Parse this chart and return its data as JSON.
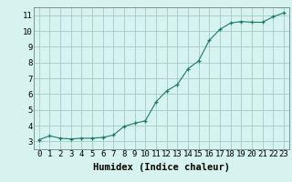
{
  "x": [
    0,
    1,
    2,
    3,
    4,
    5,
    6,
    7,
    8,
    9,
    10,
    11,
    12,
    13,
    14,
    15,
    16,
    17,
    18,
    19,
    20,
    21,
    22,
    23
  ],
  "y": [
    3.1,
    3.35,
    3.2,
    3.15,
    3.2,
    3.2,
    3.25,
    3.4,
    3.95,
    4.15,
    4.3,
    5.5,
    6.2,
    6.6,
    7.6,
    8.1,
    9.4,
    10.1,
    10.5,
    10.6,
    10.55,
    10.55,
    10.9,
    11.15
  ],
  "xlim": [
    -0.5,
    23.5
  ],
  "ylim": [
    2.5,
    11.5
  ],
  "xticks": [
    0,
    1,
    2,
    3,
    4,
    5,
    6,
    7,
    8,
    9,
    10,
    11,
    12,
    13,
    14,
    15,
    16,
    17,
    18,
    19,
    20,
    21,
    22,
    23
  ],
  "yticks": [
    3,
    4,
    5,
    6,
    7,
    8,
    9,
    10,
    11
  ],
  "xlabel": "Humidex (Indice chaleur)",
  "line_color": "#1a7a6a",
  "marker": "+",
  "bg_color": "#d6f3ef",
  "grid_color": "#aacfca",
  "tick_fontsize": 6.5,
  "label_fontsize": 7.5
}
